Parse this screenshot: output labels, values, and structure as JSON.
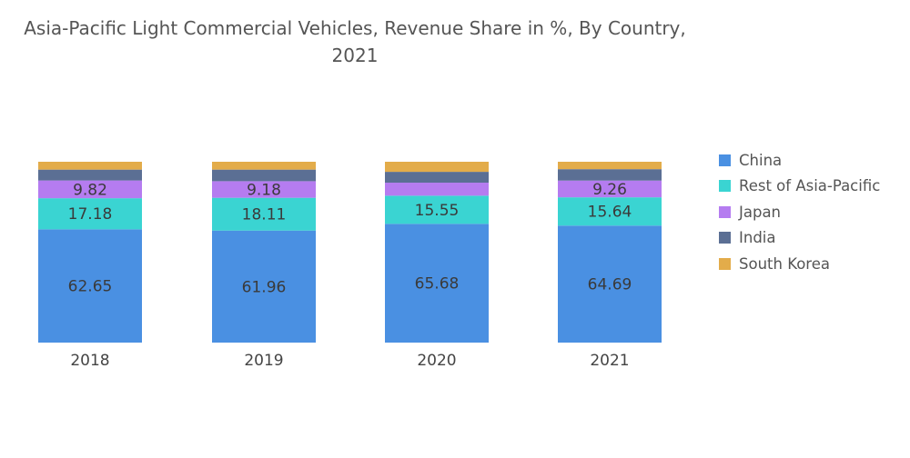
{
  "title": "Asia-Pacific Light Commercial Vehicles, Revenue Share in %, By Country, 2021",
  "chart_data": {
    "type": "bar",
    "stacked": true,
    "title": "Asia-Pacific Light Commercial Vehicles, Revenue Share in %, By Country, 2021",
    "xlabel": "",
    "ylabel": "",
    "ylim": [
      0,
      100
    ],
    "grid": false,
    "legend_position": "right",
    "categories": [
      "2018",
      "2019",
      "2020",
      "2021"
    ],
    "series": [
      {
        "name": "China",
        "color": "#4a90e2",
        "values": [
          62.65,
          61.96,
          65.68,
          64.69
        ],
        "labels": [
          "62.65",
          "61.96",
          "65.68",
          "64.69"
        ]
      },
      {
        "name": "Rest of Asia-Pacific",
        "color": "#3ad4d2",
        "values": [
          17.18,
          18.11,
          15.55,
          15.64
        ],
        "labels": [
          "17.18",
          "18.11",
          "15.55",
          "15.64"
        ]
      },
      {
        "name": "Japan",
        "color": "#b57cf0",
        "values": [
          9.82,
          9.18,
          7.2,
          9.26
        ],
        "labels": [
          "9.82",
          "9.18",
          "",
          "9.26"
        ]
      },
      {
        "name": "India",
        "color": "#5b6f94",
        "values": [
          6.0,
          6.4,
          6.0,
          6.3
        ],
        "labels": [
          "",
          "",
          "",
          ""
        ]
      },
      {
        "name": "South Korea",
        "color": "#e3ac4a",
        "values": [
          4.35,
          4.35,
          5.57,
          4.11
        ],
        "labels": [
          "",
          "",
          "",
          ""
        ]
      }
    ]
  }
}
